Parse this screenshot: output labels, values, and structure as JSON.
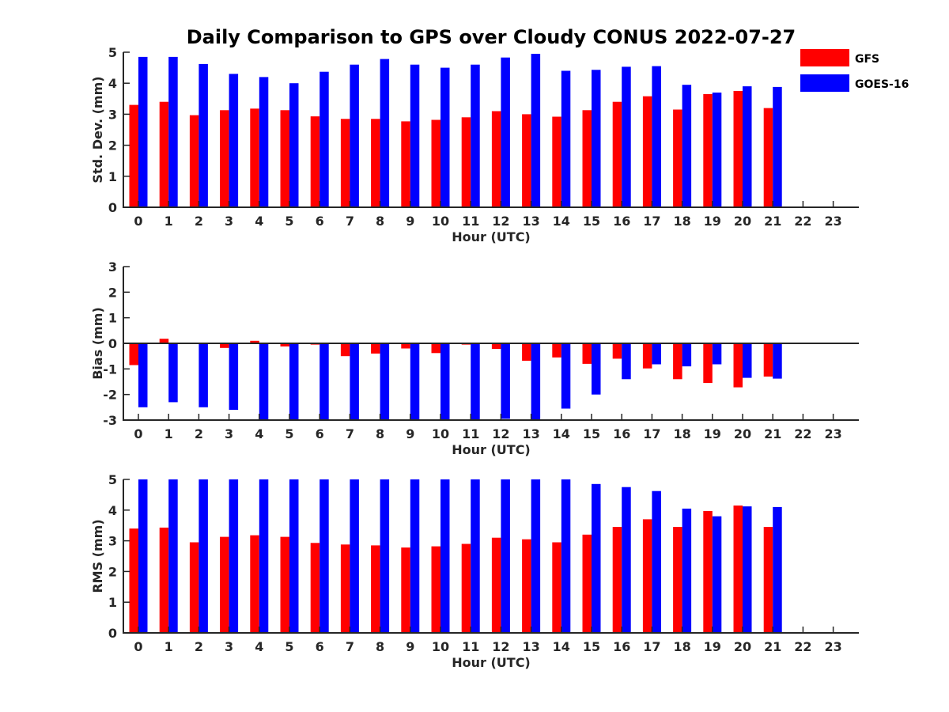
{
  "title": "Daily Comparison to GPS over Cloudy CONUS 2022-07-27",
  "legend": {
    "placement": "top-right",
    "entries": [
      {
        "name": "GFS",
        "color": "#ff0000"
      },
      {
        "name": "GOES-16",
        "color": "#0000ff"
      }
    ]
  },
  "chart_data": [
    {
      "type": "bar",
      "xlabel": "Hour (UTC)",
      "ylabel": "Std. Dev. (mm)",
      "ylim": [
        0,
        5
      ],
      "yticks": [
        "0",
        "1",
        "2",
        "3",
        "4",
        "5"
      ],
      "categories": [
        "0",
        "1",
        "2",
        "3",
        "4",
        "5",
        "6",
        "7",
        "8",
        "9",
        "10",
        "11",
        "12",
        "13",
        "14",
        "15",
        "16",
        "17",
        "18",
        "19",
        "20",
        "21",
        "22",
        "23"
      ],
      "series": [
        {
          "name": "GFS",
          "color": "#ff0000",
          "values": [
            3.3,
            3.4,
            2.97,
            3.13,
            3.18,
            3.13,
            2.93,
            2.85,
            2.85,
            2.77,
            2.82,
            2.9,
            3.1,
            3.0,
            2.92,
            3.13,
            3.4,
            3.58,
            3.15,
            3.65,
            3.75,
            3.2,
            null,
            null
          ]
        },
        {
          "name": "GOES-16",
          "color": "#0000ff",
          "values": [
            4.85,
            4.85,
            4.62,
            4.3,
            4.2,
            4.0,
            4.37,
            4.6,
            4.78,
            4.6,
            4.5,
            4.6,
            4.83,
            4.95,
            4.4,
            4.43,
            4.53,
            4.55,
            3.95,
            3.7,
            3.9,
            3.88,
            null,
            null
          ]
        }
      ]
    },
    {
      "type": "bar",
      "xlabel": "Hour (UTC)",
      "ylabel": "Bias (mm)",
      "ylim": [
        -3,
        3
      ],
      "yticks": [
        "-3",
        "-2",
        "-1",
        "0",
        "1",
        "2",
        "3"
      ],
      "categories": [
        "0",
        "1",
        "2",
        "3",
        "4",
        "5",
        "6",
        "7",
        "8",
        "9",
        "10",
        "11",
        "12",
        "13",
        "14",
        "15",
        "16",
        "17",
        "18",
        "19",
        "20",
        "21",
        "22",
        "23"
      ],
      "series": [
        {
          "name": "GFS",
          "color": "#ff0000",
          "values": [
            -0.85,
            0.18,
            -0.02,
            -0.18,
            0.1,
            -0.12,
            -0.05,
            -0.5,
            -0.4,
            -0.2,
            -0.38,
            -0.05,
            -0.22,
            -0.68,
            -0.55,
            -0.8,
            -0.6,
            -0.98,
            -1.4,
            -1.55,
            -1.72,
            -1.3,
            null,
            null
          ]
        },
        {
          "name": "GOES-16",
          "color": "#0000ff",
          "values": [
            -2.5,
            -2.3,
            -2.5,
            -2.6,
            -3.0,
            -3.0,
            -3.0,
            -3.0,
            -3.0,
            -3.0,
            -3.0,
            -3.0,
            -2.95,
            -3.0,
            -2.55,
            -2.0,
            -1.4,
            -0.82,
            -0.9,
            -0.82,
            -1.35,
            -1.38,
            null,
            null
          ]
        }
      ]
    },
    {
      "type": "bar",
      "xlabel": "Hour (UTC)",
      "ylabel": "RMS (mm)",
      "ylim": [
        0,
        5
      ],
      "yticks": [
        "0",
        "1",
        "2",
        "3",
        "4",
        "5"
      ],
      "categories": [
        "0",
        "1",
        "2",
        "3",
        "4",
        "5",
        "6",
        "7",
        "8",
        "9",
        "10",
        "11",
        "12",
        "13",
        "14",
        "15",
        "16",
        "17",
        "18",
        "19",
        "20",
        "21",
        "22",
        "23"
      ],
      "series": [
        {
          "name": "GFS",
          "color": "#ff0000",
          "values": [
            3.4,
            3.43,
            2.95,
            3.13,
            3.18,
            3.13,
            2.93,
            2.88,
            2.85,
            2.78,
            2.82,
            2.9,
            3.1,
            3.05,
            2.95,
            3.2,
            3.45,
            3.7,
            3.45,
            3.97,
            4.15,
            3.45,
            null,
            null
          ]
        },
        {
          "name": "GOES-16",
          "color": "#0000ff",
          "values": [
            5.0,
            5.0,
            5.0,
            5.0,
            5.0,
            5.0,
            5.0,
            5.0,
            5.0,
            5.0,
            5.0,
            5.0,
            5.0,
            5.0,
            5.0,
            4.85,
            4.75,
            4.62,
            4.05,
            3.8,
            4.12,
            4.1,
            null,
            null
          ]
        }
      ]
    }
  ]
}
